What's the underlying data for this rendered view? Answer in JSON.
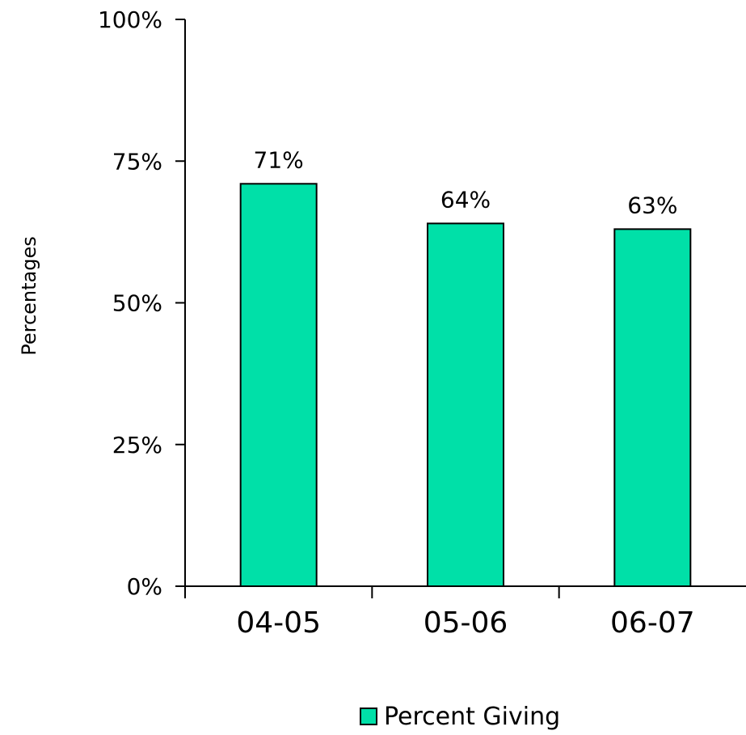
{
  "chart_data": {
    "type": "bar",
    "categories": [
      "04-05",
      "05-06",
      "06-07"
    ],
    "series": [
      {
        "name": "Percent Giving",
        "values": [
          71,
          64,
          63
        ]
      }
    ],
    "data_labels": [
      "71%",
      "64%",
      "63%"
    ],
    "title": "",
    "xlabel": "",
    "ylabel": "Percentages",
    "ylim": [
      0,
      100
    ],
    "yticks": [
      0,
      25,
      50,
      75,
      100
    ],
    "ytick_labels": [
      "0%",
      "25%",
      "50%",
      "75%",
      "100%"
    ],
    "grid": false,
    "legend_position": "bottom",
    "colors": {
      "bar": "#00e0a8",
      "outline": "#000000"
    }
  },
  "legend": {
    "label": "Percent Giving"
  }
}
